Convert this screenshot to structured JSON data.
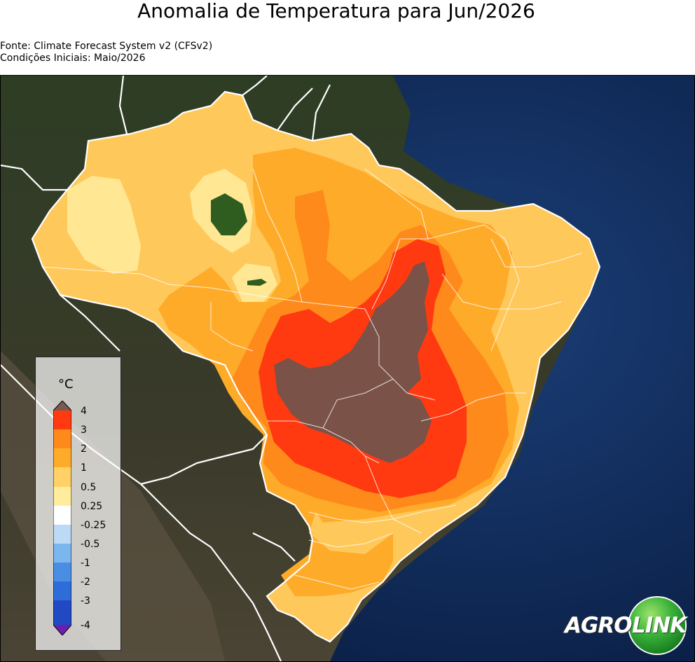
{
  "header": {
    "title": "Anomalia de Temperatura para Jun/2026",
    "source": "Fonte: Climate Forecast System v2 (CFSv2)",
    "initial_conditions": "Condições Iniciais: Maio/2026"
  },
  "legend": {
    "unit": "°C",
    "levels": [
      {
        "label": "4",
        "color": "#e53d1a"
      },
      {
        "label": "3",
        "color": "#ff7d1a"
      },
      {
        "label": "2",
        "color": "#ff9e1f"
      },
      {
        "label": "1",
        "color": "#ffbe45"
      },
      {
        "label": "0.5",
        "color": "#ffe07a"
      },
      {
        "label": "0.25",
        "color": "#ffffff"
      },
      {
        "label": "-0.25",
        "color": "#c8e3f8"
      },
      {
        "label": "-0.5",
        "color": "#8fc4f0"
      },
      {
        "label": "-1",
        "color": "#4f97e6"
      },
      {
        "label": "-2",
        "color": "#2b6fd6"
      },
      {
        "label": "-3",
        "color": "#1f45c2"
      },
      {
        "label": "-4",
        "color": "#3a1fa8"
      }
    ],
    "colors": {
      "top_triangle": "#7a5a4f",
      "band_3_4": "#ff3a10",
      "band_2_3": "#ff8a1c",
      "band_1_2": "#ffab2a",
      "band_05_1": "#ffd166",
      "band_025_05": "#ffec9c",
      "band_neutral": "#ffffff",
      "band_m025_m05": "#bcdaf5",
      "band_m05_m1": "#7cb6ee",
      "band_m1_m2": "#4a8ee4",
      "band_m2_m3": "#2e6dd8",
      "band_m3_m4": "#2149c4",
      "bottom_triangle": "#6a1fb0"
    }
  },
  "map": {
    "colors": {
      "ocean": "#0e2a57",
      "land": "#33402a",
      "anomaly_above_4": "#7a5248",
      "anomaly_3_4": "#ff3a10",
      "anomaly_2_3": "#ff8a1c",
      "anomaly_1_2": "#ffab2a",
      "anomaly_05_1": "#ffc85a",
      "anomaly_025_05": "#ffe794",
      "anomaly_below": "#2f5d1f",
      "borders": "#ffffff"
    }
  },
  "logo": {
    "part1": "AGRO",
    "part2": "LINK"
  }
}
